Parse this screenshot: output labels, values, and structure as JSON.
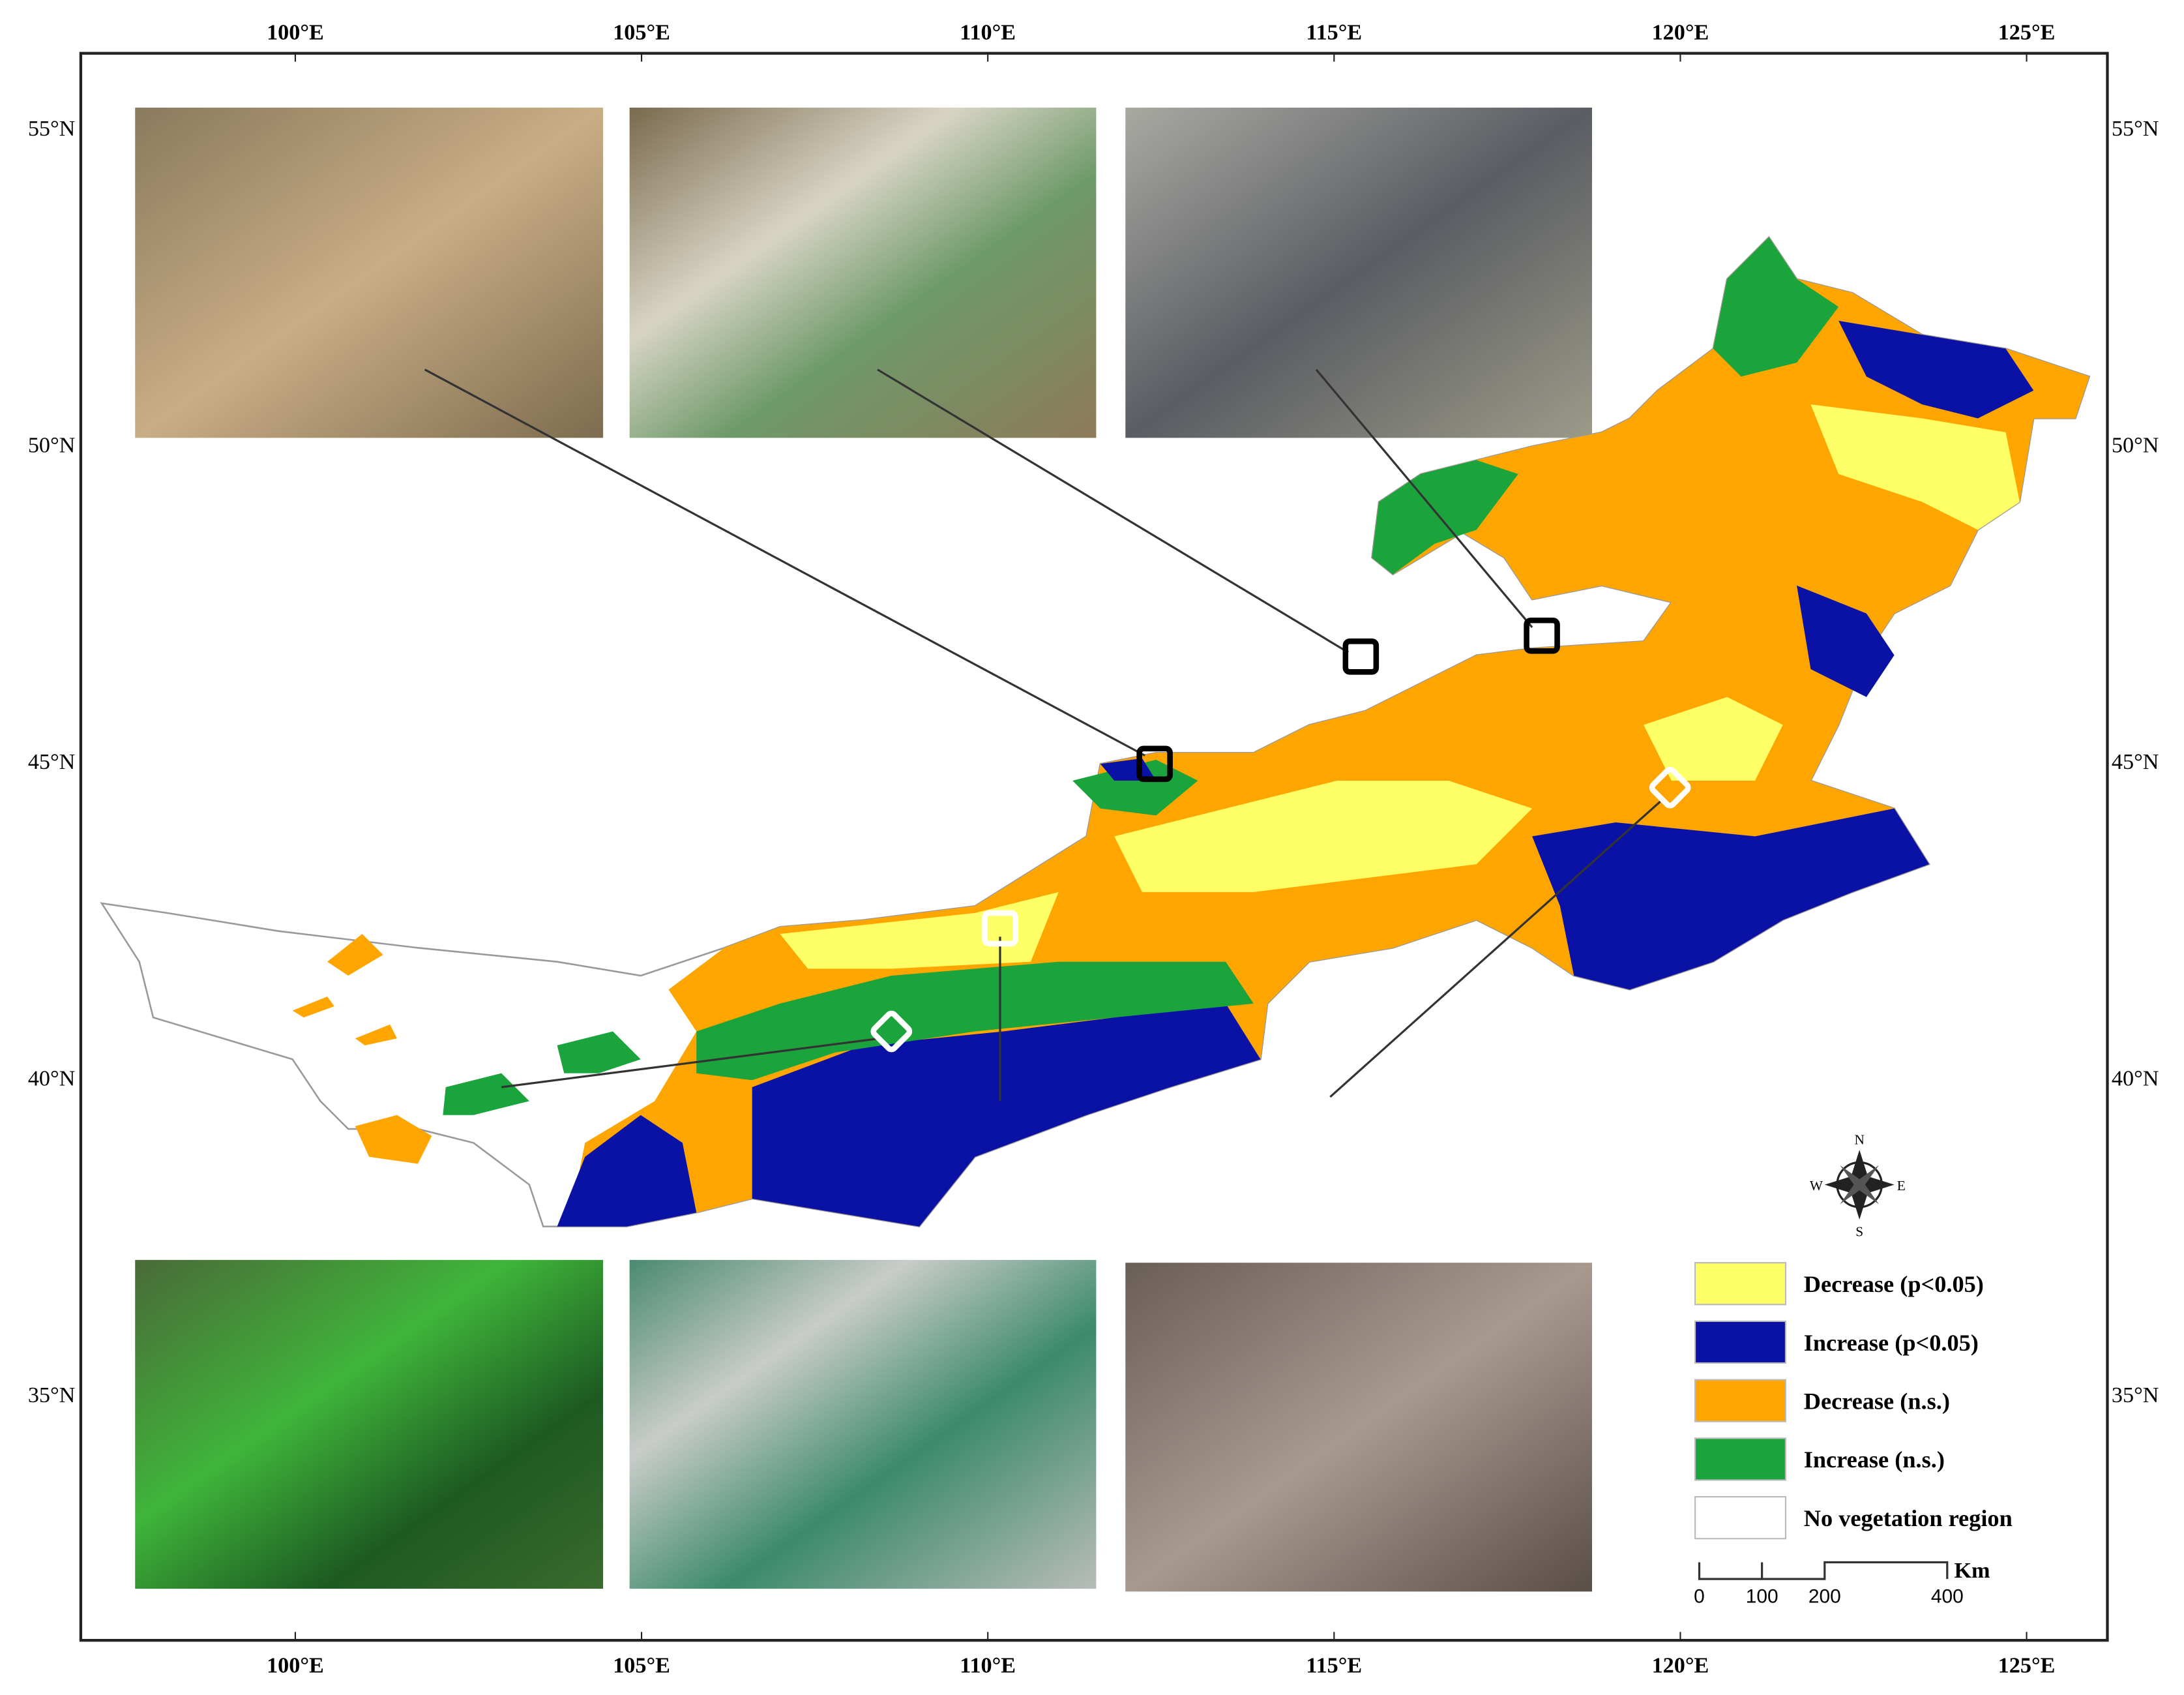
{
  "map": {
    "longitude_labels": [
      "100°E",
      "105°E",
      "110°E",
      "115°E",
      "120°E",
      "125°E"
    ],
    "latitude_labels": [
      "55°N",
      "50°N",
      "45°N",
      "40°N",
      "35°N"
    ],
    "legend": [
      {
        "label": "Decrease (p<0.05)",
        "color": "#ffff66"
      },
      {
        "label": "Increase (p<0.05)",
        "color": "#0a12a6"
      },
      {
        "label": "Decrease (n.s.)",
        "color": "#ffa500"
      },
      {
        "label": "Increase (n.s.)",
        "color": "#1ba33c"
      },
      {
        "label": "No vegetation region",
        "color": "#ffffff"
      }
    ],
    "scale_bar": {
      "labels": [
        "0",
        "100",
        "200",
        "400"
      ],
      "unit": "Km"
    },
    "compass": {
      "north": "N",
      "east": "E",
      "south": "S",
      "west": "W"
    }
  }
}
